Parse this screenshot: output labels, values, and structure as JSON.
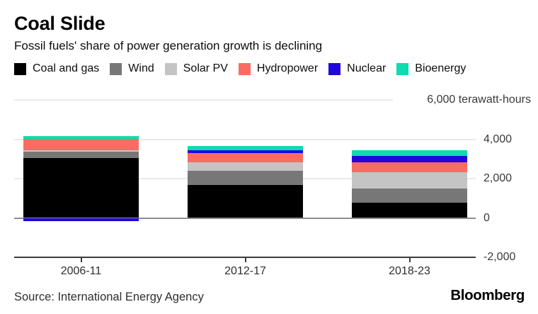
{
  "header": {
    "title": "Coal Slide",
    "subtitle": "Fossil fuels' share of power generation growth is declining"
  },
  "footer": {
    "source": "Source: International Energy Agency",
    "brand": "Bloomberg"
  },
  "chart_data": {
    "type": "bar",
    "stacked": true,
    "title": "Coal Slide",
    "subtitle": "Fossil fuels' share of power generation growth is declining",
    "unit": "terawatt-hours",
    "categories": [
      "2006-11",
      "2012-17",
      "2018-23"
    ],
    "series": [
      {
        "name": "Coal and gas",
        "color": "#000000",
        "values": [
          3050,
          1670,
          760
        ]
      },
      {
        "name": "Wind",
        "color": "#777777",
        "values": [
          330,
          720,
          750
        ]
      },
      {
        "name": "Solar PV",
        "color": "#c4c4c4",
        "values": [
          70,
          430,
          820
        ]
      },
      {
        "name": "Hydropower",
        "color": "#fc6b63",
        "values": [
          570,
          490,
          510
        ]
      },
      {
        "name": "Nuclear",
        "color": "#2106de",
        "values": [
          -160,
          120,
          310
        ]
      },
      {
        "name": "Bioenergy",
        "color": "#0ddcae",
        "values": [
          140,
          220,
          290
        ]
      }
    ],
    "y_axis": {
      "range": [
        -2000,
        6000
      ],
      "ticks": [
        {
          "value": 6000,
          "label": "6,000 terawatt-hours"
        },
        {
          "value": 4000,
          "label": "4,000"
        },
        {
          "value": 2000,
          "label": "2,000"
        },
        {
          "value": 0,
          "label": "0"
        },
        {
          "value": -2000,
          "label": "-2,000"
        }
      ],
      "label_position": "right",
      "gridlines": true
    },
    "legend_position": "top"
  }
}
